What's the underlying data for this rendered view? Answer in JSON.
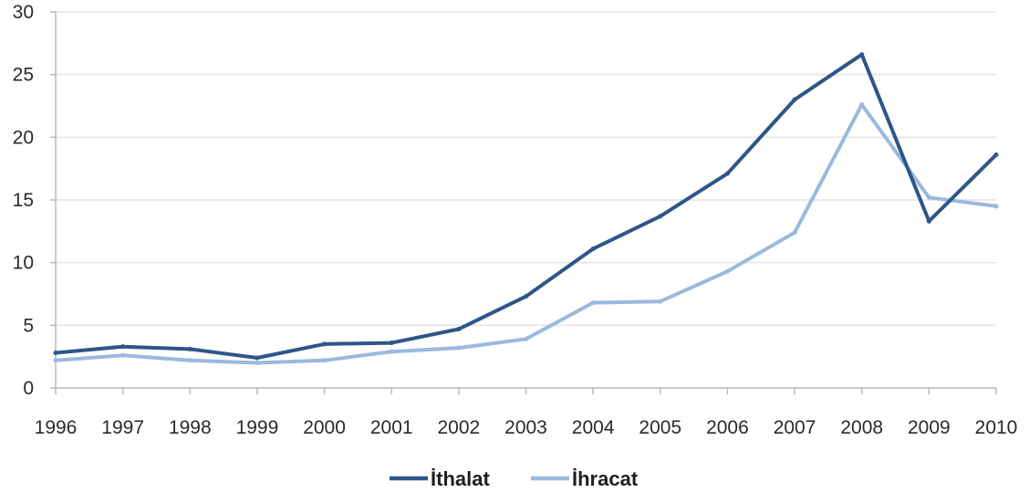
{
  "chart_data": {
    "type": "line",
    "title": "",
    "xlabel": "",
    "ylabel": "",
    "x": [
      "1996",
      "1997",
      "1998",
      "1999",
      "2000",
      "2001",
      "2002",
      "2003",
      "2004",
      "2005",
      "2006",
      "2007",
      "2008",
      "2009",
      "2010"
    ],
    "ylim": [
      0,
      30
    ],
    "yticks": [
      0,
      5,
      10,
      15,
      20,
      25,
      30
    ],
    "grid": true,
    "legend_position": "bottom-center",
    "series": [
      {
        "name": "İthalat",
        "color": "#2e5687",
        "values": [
          2.8,
          3.3,
          3.1,
          2.4,
          3.5,
          3.6,
          4.7,
          7.3,
          11.1,
          13.7,
          17.1,
          23.0,
          26.6,
          13.3,
          18.6
        ]
      },
      {
        "name": "İhracat",
        "color": "#9ab9de",
        "values": [
          2.2,
          2.6,
          2.2,
          2.0,
          2.2,
          2.9,
          3.2,
          3.9,
          6.8,
          6.9,
          9.3,
          12.4,
          22.6,
          15.2,
          14.5
        ]
      }
    ]
  }
}
